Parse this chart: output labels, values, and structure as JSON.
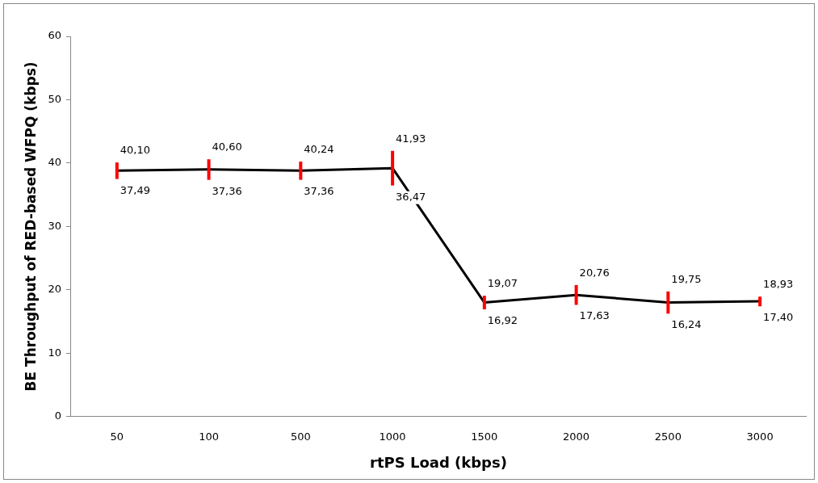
{
  "chart_data": {
    "type": "line",
    "xlabel": "rtPS Load (kbps)",
    "ylabel": "BE Throughput of RED-based WFPQ (kbps)",
    "categories": [
      "50",
      "100",
      "500",
      "1000",
      "1500",
      "2000",
      "2500",
      "3000"
    ],
    "series": [
      {
        "color": "#000000",
        "values": [
          38.8,
          39.0,
          38.8,
          39.2,
          18.0,
          19.2,
          18.0,
          18.2
        ],
        "errors": [
          [
            37.49,
            40.1
          ],
          [
            37.36,
            40.6
          ],
          [
            37.36,
            40.24
          ],
          [
            36.47,
            41.93
          ],
          [
            16.92,
            19.07
          ],
          [
            17.63,
            20.76
          ],
          [
            16.24,
            19.75
          ],
          [
            17.4,
            18.93
          ]
        ]
      }
    ],
    "ylim": [
      0,
      60
    ],
    "yticks": [
      0,
      10,
      20,
      30,
      40,
      50,
      60
    ],
    "grid": false,
    "legend": false,
    "marker": "none",
    "line_style": "solid",
    "annotations": [
      {
        "text": "40,10",
        "x": "50",
        "y": 40.1
      },
      {
        "text": "37,49",
        "x": "50",
        "y": 37.49
      },
      {
        "text": "40,60",
        "x": "100",
        "y": 40.6
      },
      {
        "text": "37,36",
        "x": "100",
        "y": 37.36
      },
      {
        "text": "40,24",
        "x": "500",
        "y": 40.24
      },
      {
        "text": "37,36",
        "x": "500",
        "y": 37.36
      },
      {
        "text": "41,93",
        "x": "1000",
        "y": 41.93
      },
      {
        "text": "36,47",
        "x": "1000",
        "y": 36.47
      },
      {
        "text": "19,07",
        "x": "1500",
        "y": 19.07
      },
      {
        "text": "16,92",
        "x": "1500",
        "y": 16.92
      },
      {
        "text": "20,76",
        "x": "2000",
        "y": 20.76
      },
      {
        "text": "17,63",
        "x": "2000",
        "y": 17.63
      },
      {
        "text": "19,75",
        "x": "2500",
        "y": 19.75
      },
      {
        "text": "16,24",
        "x": "2500",
        "y": 16.24
      },
      {
        "text": "18,93",
        "x": "3000",
        "y": 18.93
      },
      {
        "text": "17,40",
        "x": "3000",
        "y": 17.4
      }
    ]
  }
}
